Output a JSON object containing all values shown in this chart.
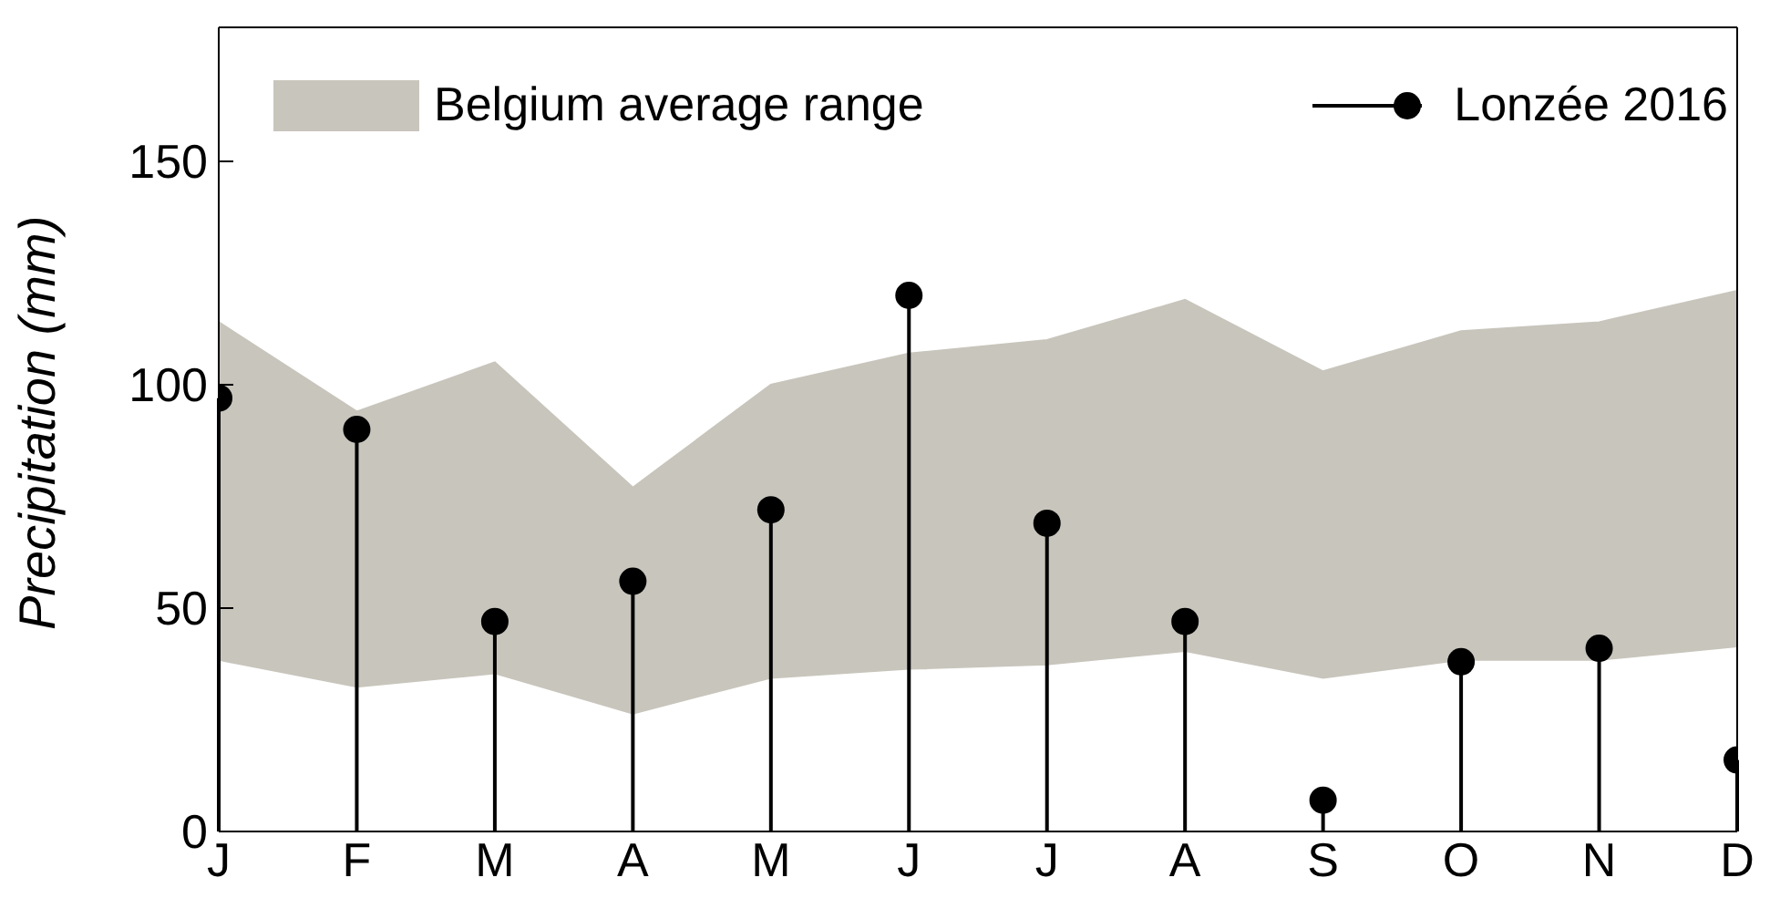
{
  "chart_data": {
    "type": "lollipop",
    "ylabel": "Precipitation (mm)",
    "categories": [
      "J",
      "F",
      "M",
      "A",
      "M",
      "J",
      "J",
      "A",
      "S",
      "O",
      "N",
      "D"
    ],
    "series": [
      {
        "name": "Belgium average range",
        "type": "area",
        "color": "#c8c5bc",
        "values": [
          114,
          94,
          105,
          77,
          100,
          107,
          110,
          119,
          103,
          112,
          114,
          121
        ]
      },
      {
        "type": "area",
        "color": "#ffffff",
        "values": [
          38,
          32,
          35,
          26,
          34,
          36,
          37,
          40,
          34,
          38,
          38,
          41
        ]
      },
      {
        "name": "Lonzée 2016",
        "type": "lollipop",
        "color": "#000000",
        "marker": "circle",
        "values": [
          97,
          90,
          47,
          56,
          72,
          120,
          69,
          47,
          7,
          38,
          41,
          16
        ]
      }
    ],
    "ylim": [
      0,
      180
    ],
    "yticks": [
      0,
      50,
      100,
      150
    ],
    "legend": "top"
  }
}
